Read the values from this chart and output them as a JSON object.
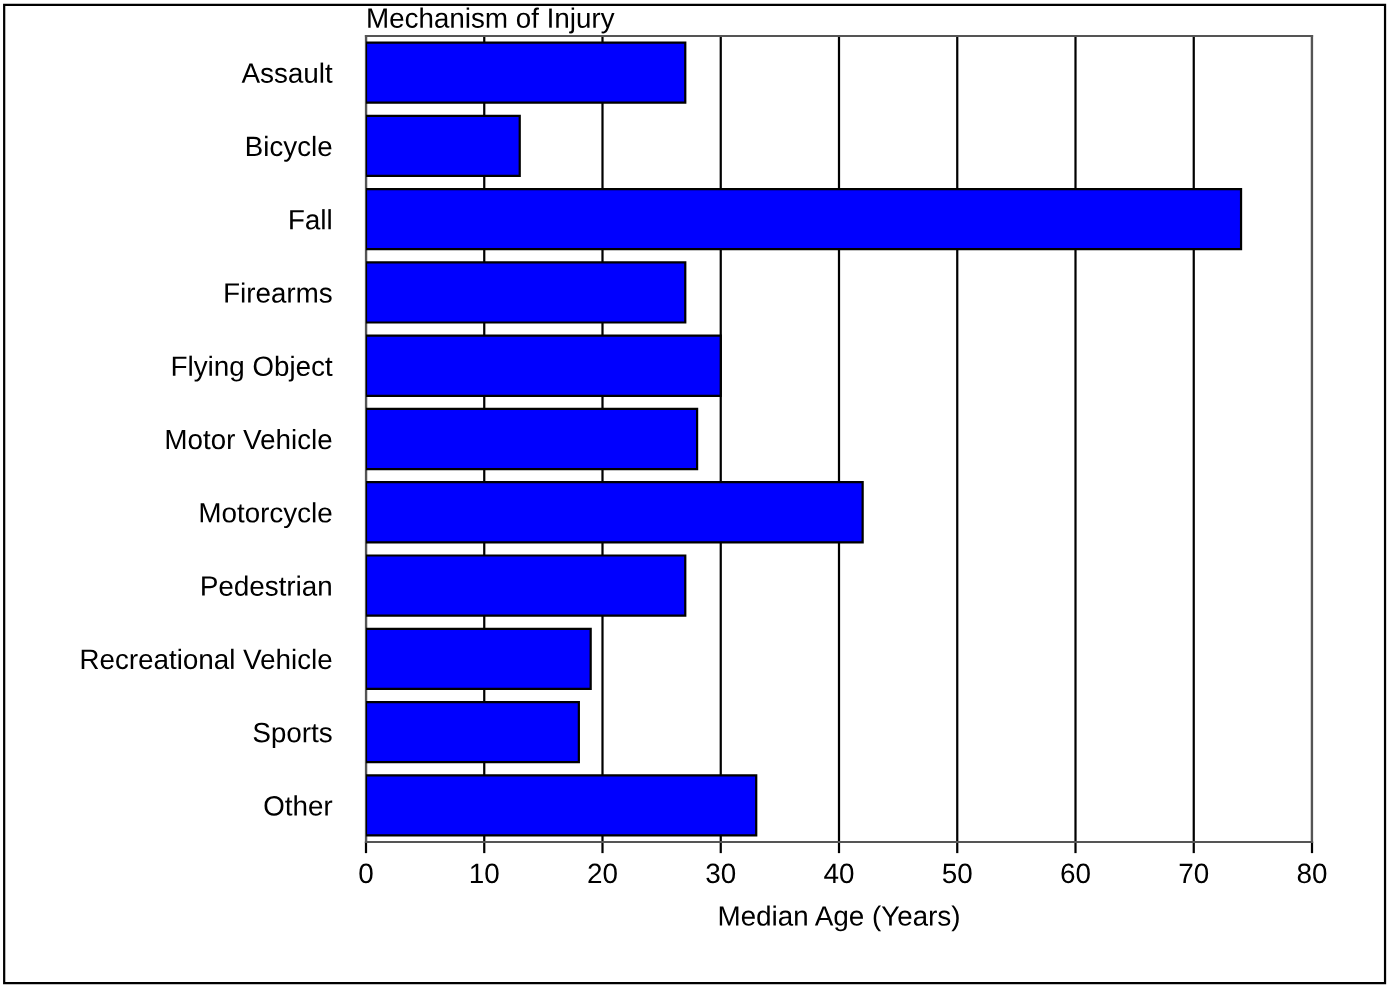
{
  "chart_data": {
    "type": "bar",
    "orientation": "horizontal",
    "title": "Mechanism of Injury",
    "xlabel": "Median Age (Years)",
    "categories": [
      "Assault",
      "Bicycle",
      "Fall",
      "Firearms",
      "Flying Object",
      "Motor Vehicle",
      "Motorcycle",
      "Pedestrian",
      "Recreational Vehicle",
      "Sports",
      "Other"
    ],
    "values": [
      27,
      13,
      74,
      27,
      30,
      28,
      42,
      27,
      19,
      18,
      33
    ],
    "color": "#0000ff",
    "xlim": [
      0,
      80
    ],
    "xticks": [
      0,
      10,
      20,
      30,
      40,
      50,
      60,
      70,
      80
    ],
    "grid": "x"
  }
}
